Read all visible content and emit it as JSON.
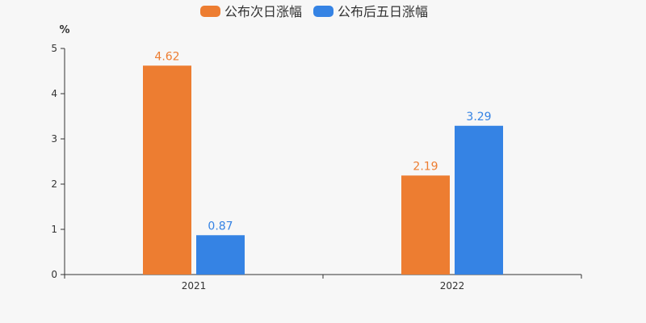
{
  "chart_data": {
    "type": "bar",
    "categories": [
      "2021",
      "2022"
    ],
    "series": [
      {
        "name": "公布次日涨幅",
        "color": "#ed7d31",
        "values": [
          4.62,
          2.19
        ]
      },
      {
        "name": "公布后五日涨幅",
        "color": "#3583e4",
        "values": [
          0.87,
          3.29
        ]
      }
    ],
    "ylabel": "%",
    "ylim": [
      0,
      5
    ],
    "yticks": [
      0,
      1,
      2,
      3,
      4,
      5
    ],
    "grid": false,
    "legend_position": "top-center",
    "data_labels": true
  }
}
